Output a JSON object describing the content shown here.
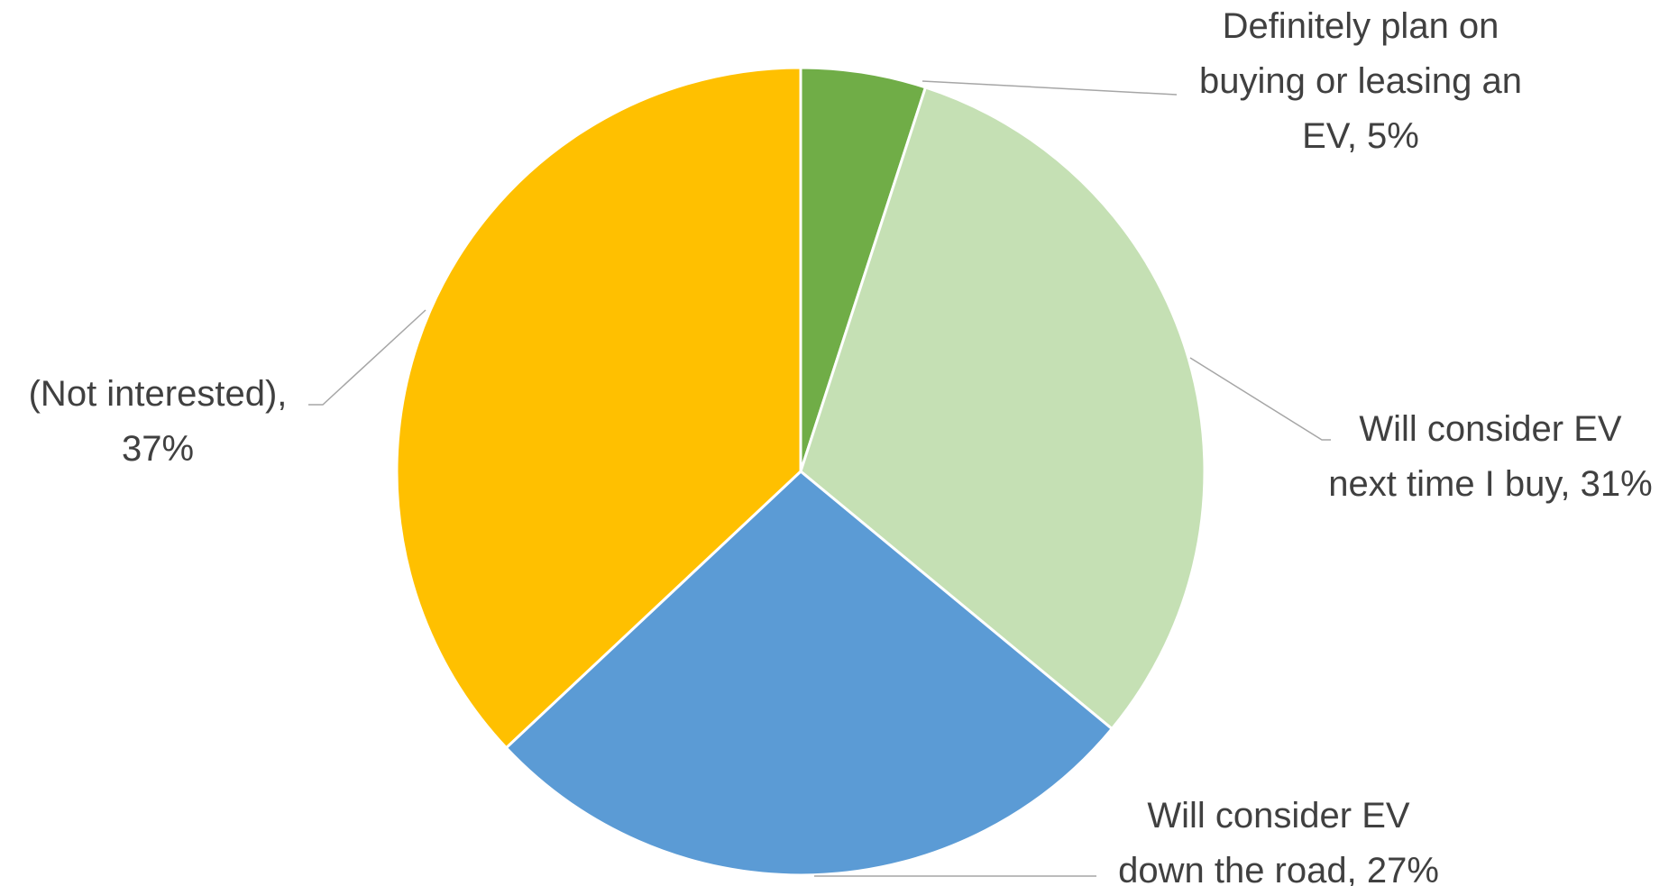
{
  "chart_data": {
    "type": "pie",
    "title": "",
    "start_angle_deg": 0,
    "direction": "clockwise",
    "legend": "none",
    "slices": [
      {
        "name": "Definitely plan on buying or leasing an EV",
        "value": 5,
        "color": "#70ad47",
        "label_lines": [
          "Definitely plan on",
          "buying or leasing an",
          "EV, 5%"
        ]
      },
      {
        "name": "Will consider EV next time I buy",
        "value": 31,
        "color": "#c5e0b4",
        "label_lines": [
          "Will consider EV",
          "next time I buy, 31%"
        ]
      },
      {
        "name": "Will consider EV down the road",
        "value": 27,
        "color": "#5b9bd5",
        "label_lines": [
          "Will consider EV",
          "down the road, 27%"
        ]
      },
      {
        "name": "(Not interested)",
        "value": 37,
        "color": "#ffc000",
        "label_lines": [
          "(Not interested),",
          "37%"
        ]
      }
    ]
  }
}
